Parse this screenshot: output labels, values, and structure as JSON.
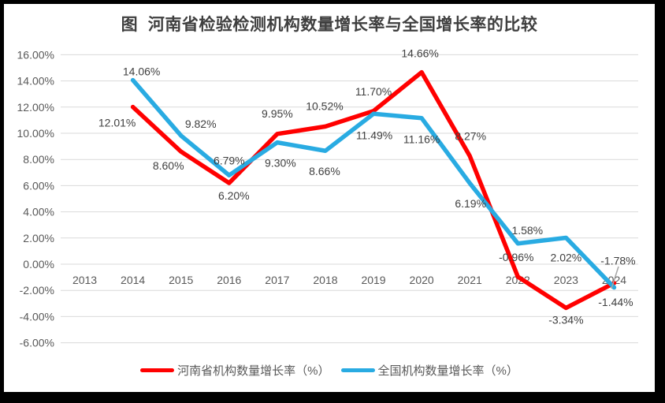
{
  "title": "图  河南省检验检测机构数量增长率与全国增长率的比较",
  "legend": {
    "items": [
      {
        "label": "河南省机构数量增长率（%）",
        "color": "#FF0000"
      },
      {
        "label": "全国机构数量增长率（%）",
        "color": "#29ABE2"
      }
    ]
  },
  "style": {
    "frame_color": "#000000",
    "background": "#FFFFFF",
    "gridline_color": "#D9D9D9",
    "axis_text_color": "#595959",
    "data_label_color": "#3F3F3F",
    "cursor_mark_color": "#A6A6A6"
  },
  "chart_data": {
    "type": "line",
    "title": "图  河南省检验检测机构数量增长率与全国增长率的比较",
    "xlabel": "",
    "ylabel": "",
    "grid": true,
    "legend_position": "bottom",
    "categories": [
      "2013",
      "2014",
      "2015",
      "2016",
      "2017",
      "2018",
      "2019",
      "2020",
      "2021",
      "2022",
      "2023",
      "2024"
    ],
    "y_axis": {
      "min": -6,
      "max": 16,
      "step": 2,
      "tick_labels": [
        "16.00%",
        "14.00%",
        "12.00%",
        "10.00%",
        "8.00%",
        "6.00%",
        "4.00%",
        "2.00%",
        "0.00%",
        "-2.00%",
        "-4.00%",
        "-6.00%"
      ]
    },
    "series": [
      {
        "id": "henan",
        "name": "河南省机构数量增长率（%）",
        "color": "#FF0000",
        "values": [
          null,
          12.01,
          8.6,
          6.2,
          9.95,
          10.52,
          11.7,
          14.66,
          8.27,
          -0.96,
          -3.34,
          -1.44
        ],
        "labels": [
          null,
          "12.01%",
          "8.60%",
          "6.20%",
          "9.95%",
          "10.52%",
          "11.70%",
          "14.66%",
          "8.27%",
          "-0.96%",
          "-3.34%",
          "-1.44%"
        ],
        "label_offsets": [
          null,
          [
            -20,
            25
          ],
          [
            -16,
            23
          ],
          [
            6,
            21
          ],
          [
            0,
            -21
          ],
          [
            -1,
            -21
          ],
          [
            0,
            -20
          ],
          [
            -2,
            -19
          ],
          [
            1,
            -20
          ],
          [
            -2,
            -20
          ],
          [
            0,
            20
          ],
          [
            2,
            29
          ]
        ]
      },
      {
        "id": "national",
        "name": "全国机构数量增长率（%）",
        "color": "#29ABE2",
        "values": [
          null,
          14.06,
          9.82,
          6.79,
          9.3,
          8.66,
          11.49,
          11.16,
          6.19,
          1.58,
          2.02,
          -1.78
        ],
        "labels": [
          null,
          "14.06%",
          "9.82%",
          "6.79%",
          "9.30%",
          "8.66%",
          "11.49%",
          "11.16%",
          "6.19%",
          "1.58%",
          "2.02%",
          "-1.78%"
        ],
        "label_offsets": [
          null,
          [
            11,
            -6
          ],
          [
            25,
            -10
          ],
          [
            0,
            -14
          ],
          [
            4,
            31
          ],
          [
            -1,
            31
          ],
          [
            1,
            32
          ],
          [
            0,
            32
          ],
          [
            1,
            31
          ],
          [
            12,
            -12
          ],
          [
            0,
            30
          ],
          [
            5,
            -29
          ]
        ]
      }
    ],
    "annotations": [
      {
        "type": "cursor-slash",
        "near_category": "2024"
      }
    ]
  }
}
